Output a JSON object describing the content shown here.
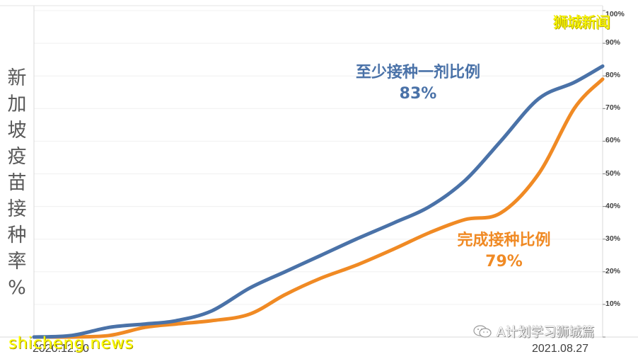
{
  "watermarks": {
    "top_right": "狮城新闻",
    "bottom_left": "shicheng.news",
    "wechat_tag": "A计划学习狮城篇"
  },
  "colors": {
    "first_dose": "#4a72a8",
    "fully_vaccinated": "#f08a24",
    "gridline": "#f0f0f0",
    "axis_text": "#404040",
    "ylabel_text": "#595959"
  },
  "annotations": {
    "first_dose": {
      "name": "至少接种一剂比例",
      "pct": "83%"
    },
    "fully_vaccinated": {
      "name": "完成接种比例",
      "pct": "79%"
    }
  },
  "y_axis": {
    "label_chars": [
      "新",
      "加",
      "坡",
      "疫",
      "苗",
      "接",
      "种",
      "率",
      "%"
    ],
    "ticks": [
      "100%",
      "90%",
      "80%",
      "70%",
      "60%",
      "50%",
      "40%",
      "30%",
      "20%",
      "10%",
      "0%"
    ]
  },
  "x_axis": {
    "start_label": "2020.12.30",
    "end_label": "2021.08.27"
  },
  "chart_data": {
    "type": "line",
    "title": "新加坡疫苗接种率%",
    "xlabel": "",
    "ylabel": "新加坡疫苗接种率%",
    "ylim": [
      0,
      100
    ],
    "y_ticks": [
      0,
      10,
      20,
      30,
      40,
      50,
      60,
      70,
      80,
      90,
      100
    ],
    "y_axis_position": "right",
    "grid": true,
    "legend": "inline annotations",
    "x": [
      "2020-12-30",
      "2021-01-15",
      "2021-01-31",
      "2021-02-15",
      "2021-02-28",
      "2021-03-15",
      "2021-03-31",
      "2021-04-15",
      "2021-04-30",
      "2021-05-15",
      "2021-05-31",
      "2021-06-15",
      "2021-06-30",
      "2021-07-15",
      "2021-07-31",
      "2021-08-15",
      "2021-08-27"
    ],
    "series": [
      {
        "name": "至少接种一剂比例",
        "color": "#4a72a8",
        "final_label": "83%",
        "values": [
          0,
          0.5,
          3,
          4,
          5,
          8,
          15,
          20,
          25,
          30,
          35,
          40,
          48,
          60,
          73,
          78,
          83
        ]
      },
      {
        "name": "完成接种比例",
        "color": "#f08a24",
        "final_label": "79%",
        "values": [
          0,
          0,
          0.5,
          3,
          4,
          5,
          7,
          13,
          18,
          22,
          27,
          32,
          36,
          38,
          50,
          70,
          79
        ]
      }
    ],
    "annotations": [
      {
        "text": "至少接种一剂比例 83%",
        "series": 0
      },
      {
        "text": "完成接种比例 79%",
        "series": 1
      }
    ]
  }
}
